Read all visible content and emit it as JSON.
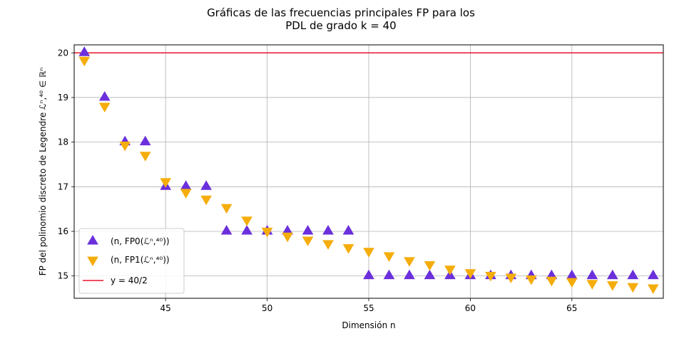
{
  "chart_data": {
    "type": "scatter",
    "title_lines": [
      "Gráficas de las frecuencias principales FP para los",
      "PDL de grado k = 40"
    ],
    "xlabel": "Dimensión n",
    "ylabel": "FP del polinomio discreto de Legendre ℒⁿ,⁴⁰ ∈ ℝⁿ",
    "xlim": [
      40.5,
      69.5
    ],
    "ylim": [
      14.5,
      20.18
    ],
    "xticks": [
      45,
      50,
      55,
      60,
      65
    ],
    "yticks": [
      15,
      16,
      17,
      18,
      19,
      20
    ],
    "grid": true,
    "legend_position": "lower-left",
    "x": [
      41,
      42,
      43,
      44,
      45,
      46,
      47,
      48,
      49,
      50,
      51,
      52,
      53,
      54,
      55,
      56,
      57,
      58,
      59,
      60,
      61,
      62,
      63,
      64,
      65,
      66,
      67,
      68,
      69
    ],
    "series": [
      {
        "name": "(n, FP0(ℒⁿ,⁴⁰))",
        "marker": "triangle-up",
        "color": "#6b2fdc",
        "values": [
          20,
          19,
          18,
          18,
          17,
          17,
          17,
          16,
          16,
          16,
          16,
          16,
          16,
          16,
          15,
          15,
          15,
          15,
          15,
          15,
          15,
          15,
          15,
          15,
          15,
          15,
          15,
          15,
          15
        ]
      },
      {
        "name": "(n, FP1(ℒⁿ,⁴⁰))",
        "marker": "triangle-down",
        "color": "#f5ad0c",
        "values": [
          19.84,
          18.81,
          17.94,
          17.71,
          17.12,
          16.88,
          16.73,
          16.54,
          16.26,
          16.01,
          15.9,
          15.81,
          15.73,
          15.64,
          15.56,
          15.46,
          15.35,
          15.26,
          15.16,
          15.08,
          15.02,
          14.98,
          14.94,
          14.91,
          14.88,
          14.84,
          14.81,
          14.77,
          14.74
        ]
      }
    ],
    "reference_line": {
      "name": "y = 40/2",
      "y": 20,
      "color": "#e8132a"
    }
  }
}
